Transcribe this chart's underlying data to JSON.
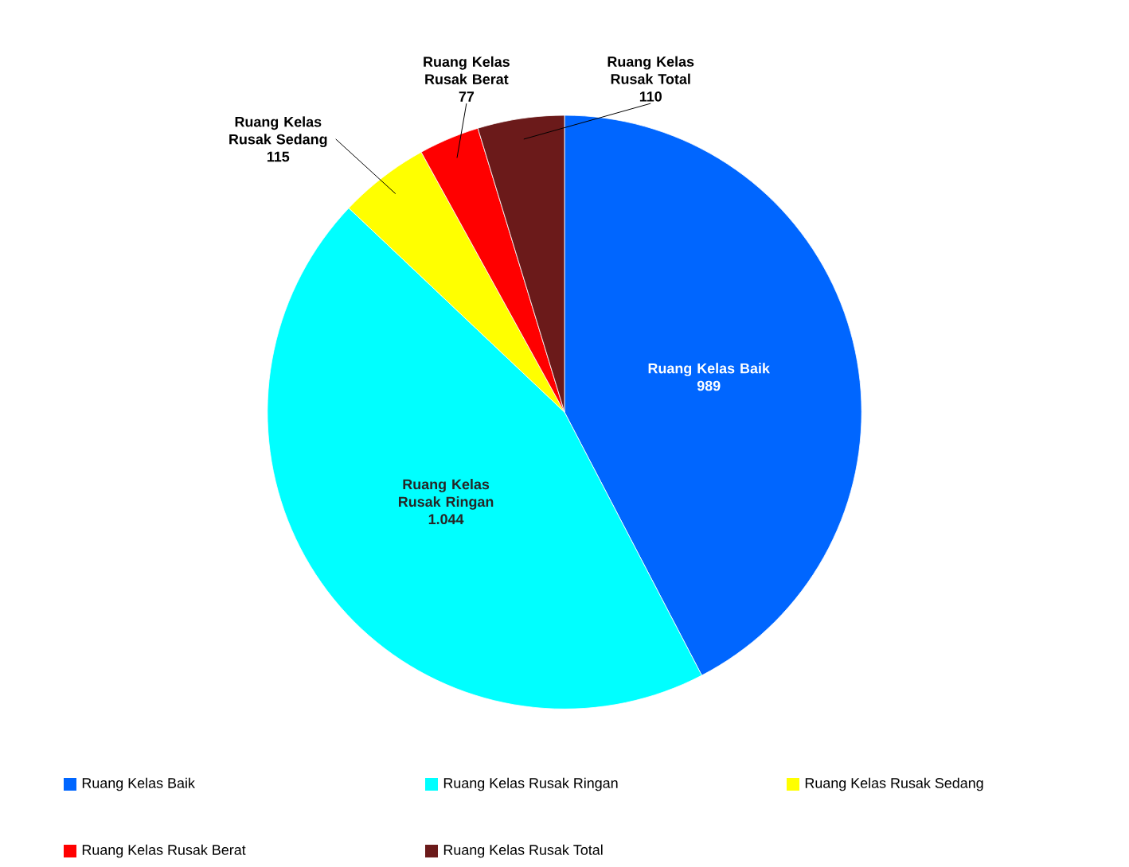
{
  "chart_data": {
    "type": "pie",
    "categories": [
      "Ruang Kelas Baik",
      "Ruang Kelas Rusak Ringan",
      "Ruang Kelas Rusak Sedang",
      "Ruang Kelas Rusak Berat",
      "Ruang Kelas Rusak Total"
    ],
    "values": [
      989,
      1044,
      115,
      77,
      110
    ],
    "value_labels": [
      "989",
      "1.044",
      "115",
      "77",
      "110"
    ],
    "colors": [
      "#0066ff",
      "#00ffff",
      "#ffff00",
      "#ff0000",
      "#6b1a1a"
    ],
    "legend": "bottom"
  }
}
